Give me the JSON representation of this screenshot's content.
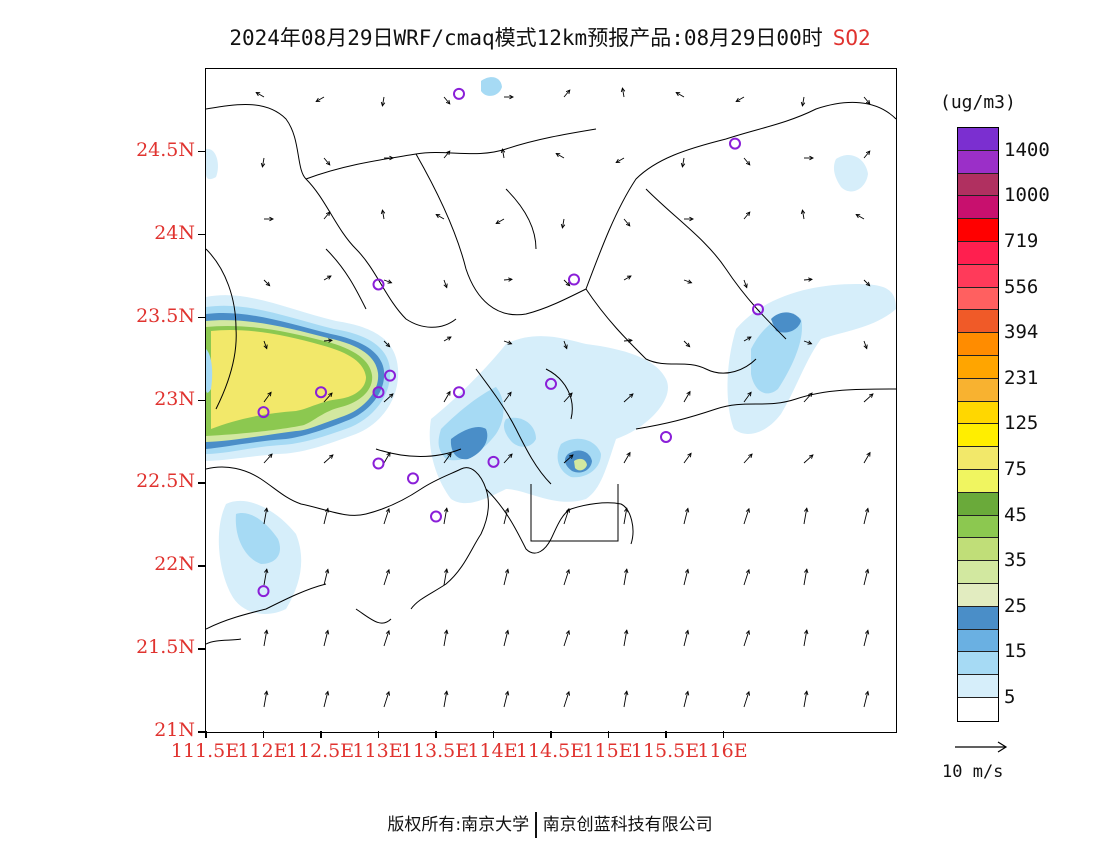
{
  "title": {
    "text": "2024年08月29日WRF/cmaq模式12km预报产品:08月29日00时",
    "pollutant": "SO2"
  },
  "map": {
    "lat_ticks": [
      "24.5N",
      "24N",
      "23.5N",
      "23N",
      "22.5N",
      "22N",
      "21.5N",
      "21N"
    ],
    "lon_ticks": [
      "111.5E",
      "112E",
      "112.5E",
      "113E",
      "113.5E",
      "114E",
      "114.5E",
      "115E",
      "115.5E",
      "116E"
    ],
    "lat_values": [
      24.5,
      24,
      23.5,
      23,
      22.5,
      22,
      21.5,
      21
    ],
    "lon_values": [
      111.5,
      112,
      112.5,
      113,
      113.5,
      114,
      114.5,
      115,
      115.5,
      116
    ],
    "lat_range": [
      21,
      25
    ],
    "lon_range": [
      111.5,
      117.5
    ],
    "stations": [
      [
        113.7,
        24.85
      ],
      [
        116.1,
        24.55
      ],
      [
        113.0,
        23.7
      ],
      [
        114.7,
        23.73
      ],
      [
        116.3,
        23.55
      ],
      [
        113.1,
        23.15
      ],
      [
        113.0,
        23.05
      ],
      [
        113.7,
        23.05
      ],
      [
        114.5,
        23.1
      ],
      [
        112.5,
        23.05
      ],
      [
        112.0,
        22.93
      ],
      [
        115.5,
        22.78
      ],
      [
        113.0,
        22.62
      ],
      [
        113.3,
        22.53
      ],
      [
        114.0,
        22.63
      ],
      [
        113.5,
        22.3
      ],
      [
        112.0,
        21.85
      ]
    ]
  },
  "colorbar": {
    "unit": "(ug/m3)",
    "labels": [
      "1400",
      "1000",
      "719",
      "556",
      "394",
      "231",
      "125",
      "75",
      "45",
      "35",
      "25",
      "15",
      "5"
    ],
    "colors": [
      "#7b2fd0",
      "#9b2fc8",
      "#b03060",
      "#c8106e",
      "#ff0000",
      "#ff1f4f",
      "#ff3a5a",
      "#ff6060",
      "#f05a28",
      "#ff8c00",
      "#ffa500",
      "#f8b230",
      "#ffd700",
      "#ffee00",
      "#f2e86a",
      "#f0f560",
      "#6aaa3a",
      "#8cc850",
      "#c0de78",
      "#d2e8a0",
      "#e2ecc0",
      "#4a8ec8",
      "#6ab0e2",
      "#a6daf4",
      "#d6eefa",
      "#ffffff"
    ]
  },
  "wind_ref": {
    "label": "10 m/s"
  },
  "footer": {
    "left": "版权所有:南京大学",
    "right": "南京创蓝科技有限公司"
  }
}
